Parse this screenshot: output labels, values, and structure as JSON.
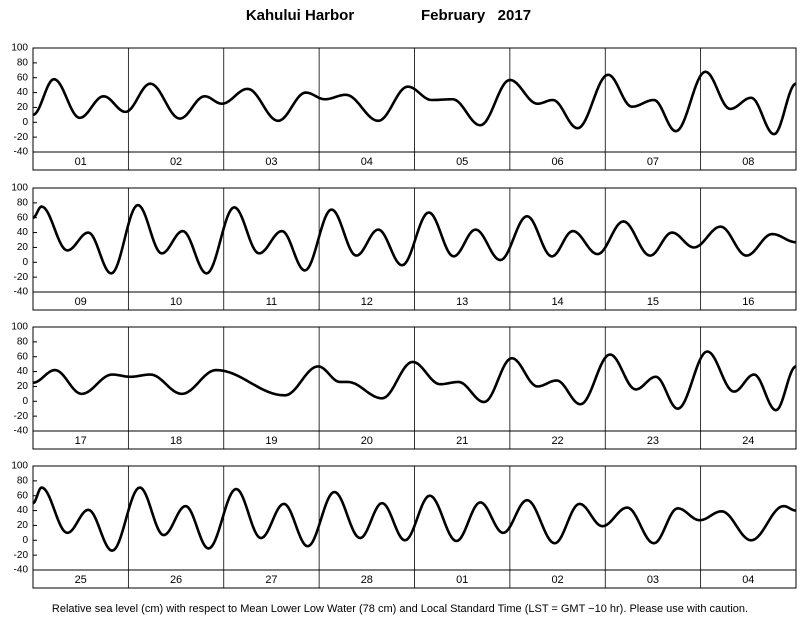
{
  "header": {
    "title": "Kahului Harbor",
    "period": "February   2017"
  },
  "footer": "Relative sea level (cm) with respect to Mean Lower Low Water (78 cm) and Local Standard Time (LST = GMT −10 hr). Please use with caution.",
  "chart_data": [
    {
      "type": "line",
      "color": "#000000",
      "categories": [
        "01",
        "02",
        "03",
        "04",
        "05",
        "06",
        "07",
        "08"
      ],
      "x": [
        0,
        0.22,
        0.49,
        0.74,
        0.97,
        1.23,
        1.54,
        1.8,
        1.98,
        2.25,
        2.57,
        2.86,
        3.06,
        3.28,
        3.62,
        3.93,
        4.18,
        4.4,
        4.69,
        5.0,
        5.29,
        5.45,
        5.71,
        6.03,
        6.28,
        6.51,
        6.74,
        7.05,
        7.31,
        7.53,
        7.77,
        8.0
      ],
      "values": [
        10,
        58,
        6,
        35,
        14,
        52,
        5,
        35,
        25,
        45,
        2,
        40,
        31,
        37,
        2,
        48,
        30,
        31,
        -4,
        57,
        25,
        30,
        -8,
        64,
        21,
        30,
        -12,
        68,
        18,
        33,
        -16,
        52
      ],
      "ylim": [
        -40,
        100
      ],
      "yticks": [
        -40,
        -20,
        0,
        20,
        40,
        60,
        80,
        100
      ]
    },
    {
      "type": "line",
      "color": "#000000",
      "categories": [
        "09",
        "10",
        "11",
        "12",
        "13",
        "14",
        "15",
        "16"
      ],
      "x": [
        0,
        0.09,
        0.36,
        0.58,
        0.82,
        1.1,
        1.35,
        1.57,
        1.82,
        2.11,
        2.37,
        2.61,
        2.85,
        3.13,
        3.39,
        3.62,
        3.87,
        4.15,
        4.41,
        4.64,
        4.9,
        5.18,
        5.44,
        5.66,
        5.92,
        6.19,
        6.47,
        6.7,
        6.93,
        7.21,
        7.48,
        7.75,
        8.0
      ],
      "values": [
        60,
        75,
        16,
        40,
        -15,
        77,
        12,
        42,
        -15,
        74,
        12,
        42,
        -11,
        71,
        9,
        44,
        -4,
        67,
        8,
        44,
        3,
        62,
        8,
        42,
        11,
        55,
        9,
        40,
        20,
        48,
        9,
        38,
        27
      ],
      "ylim": [
        -40,
        100
      ],
      "yticks": [
        -40,
        -20,
        0,
        20,
        40,
        60,
        80,
        100
      ]
    },
    {
      "type": "line",
      "color": "#000000",
      "categories": [
        "17",
        "18",
        "19",
        "20",
        "21",
        "22",
        "23",
        "24"
      ],
      "x": [
        0,
        0.23,
        0.51,
        0.83,
        1.02,
        1.23,
        1.56,
        1.92,
        2.64,
        2.99,
        3.22,
        3.3,
        3.66,
        3.98,
        4.27,
        4.46,
        4.73,
        5.02,
        5.29,
        5.49,
        5.74,
        6.05,
        6.32,
        6.53,
        6.76,
        7.07,
        7.35,
        7.56,
        7.79,
        8.0
      ],
      "values": [
        25,
        42,
        10,
        36,
        33,
        36,
        10,
        42,
        8,
        47,
        26,
        26,
        4,
        53,
        23,
        26,
        -1,
        58,
        20,
        28,
        -4,
        63,
        16,
        33,
        -10,
        67,
        13,
        36,
        -12,
        47
      ],
      "ylim": [
        -40,
        100
      ],
      "yticks": [
        -40,
        -20,
        0,
        20,
        40,
        60,
        80,
        100
      ]
    },
    {
      "type": "line",
      "color": "#000000",
      "categories": [
        "25",
        "26",
        "27",
        "28",
        "01",
        "02",
        "03",
        "04"
      ],
      "x": [
        0,
        0.09,
        0.36,
        0.58,
        0.83,
        1.12,
        1.37,
        1.6,
        1.84,
        2.13,
        2.39,
        2.63,
        2.88,
        3.16,
        3.43,
        3.66,
        3.9,
        4.16,
        4.44,
        4.69,
        4.93,
        5.18,
        5.47,
        5.73,
        5.97,
        6.23,
        6.51,
        6.76,
        6.99,
        7.22,
        7.53,
        7.87,
        8.0
      ],
      "values": [
        50,
        71,
        10,
        41,
        -14,
        71,
        7,
        46,
        -11,
        69,
        3,
        49,
        -8,
        65,
        3,
        50,
        0,
        60,
        -1,
        51,
        10,
        54,
        -4,
        49,
        19,
        44,
        -4,
        43,
        27,
        39,
        0,
        46,
        40
      ],
      "ylim": [
        -40,
        100
      ],
      "yticks": [
        -40,
        -20,
        0,
        20,
        40,
        60,
        80,
        100
      ]
    }
  ]
}
